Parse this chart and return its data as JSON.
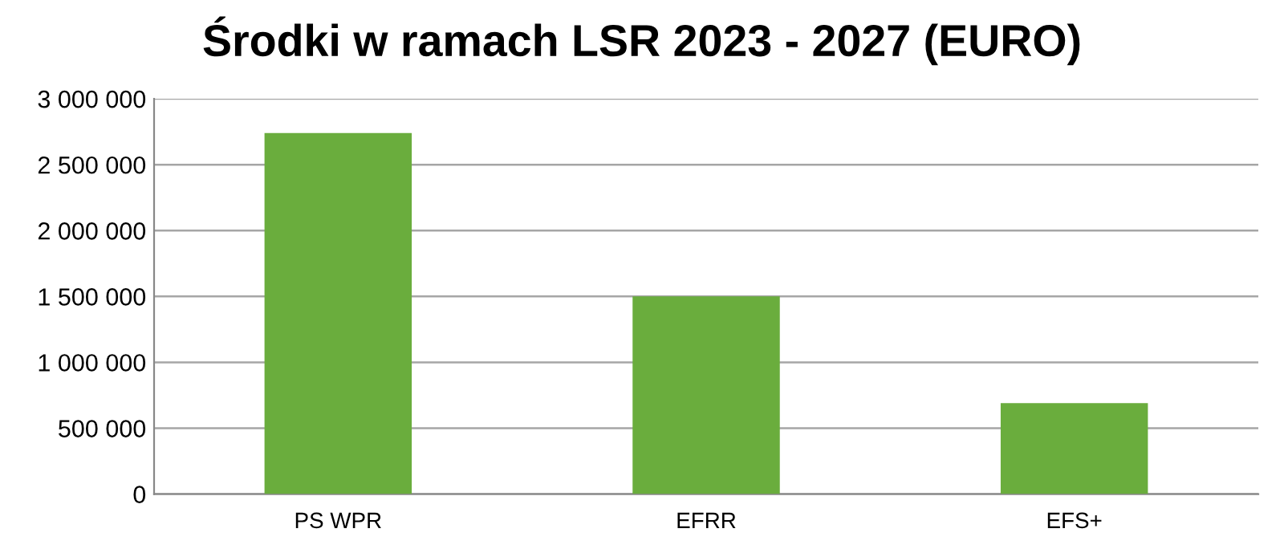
{
  "chart_data": {
    "type": "bar",
    "title": "Środki w ramach LSR 2023 - 2027 (EURO)",
    "categories": [
      "PS WPR",
      "EFRR",
      "EFS+"
    ],
    "values": [
      2740000,
      1500000,
      690000
    ],
    "color": "#6aad3d",
    "ylim": [
      0,
      3000000
    ],
    "yticks": [
      0,
      {
        "value": 500000,
        "label": "500 000"
      },
      {
        "value": 1000000,
        "label": "1 000 000"
      },
      {
        "value": 1500000,
        "label": "1 500 000"
      },
      {
        "value": 2000000,
        "label": "2 000 000"
      },
      {
        "value": 2500000,
        "label": "2 500 000"
      },
      {
        "value": 3000000,
        "label": "3 000 000"
      }
    ],
    "grid": "y",
    "legend": false
  }
}
